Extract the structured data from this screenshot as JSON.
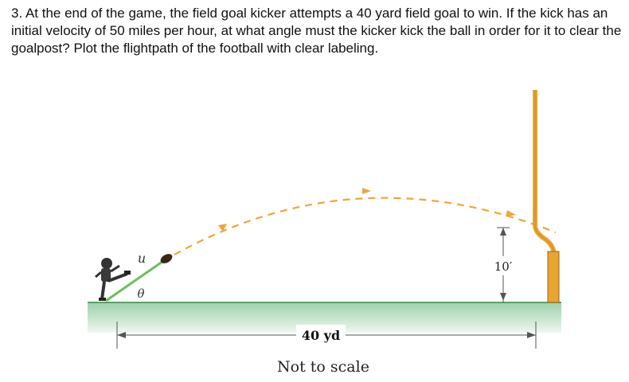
{
  "question": {
    "text": "3. At the end of the game, the field goal kicker attempts a 40 yard field goal to win. If the kick has an initial velocity of 50 miles per hour, at what angle must the kicker kick the ball in order for it to clear the goalpost? Plot the flightpath of the football with clear labeling."
  },
  "figure": {
    "velocity_label": "u",
    "angle_label": "θ",
    "height_label": "10′",
    "distance_label": "40 yd",
    "scale_note": "Not to scale",
    "colors": {
      "grass": "#a9d5b3",
      "goalpost": "#e8a531",
      "trajectory": "#f2a43c",
      "ground_line": "#3c8a4a"
    }
  }
}
